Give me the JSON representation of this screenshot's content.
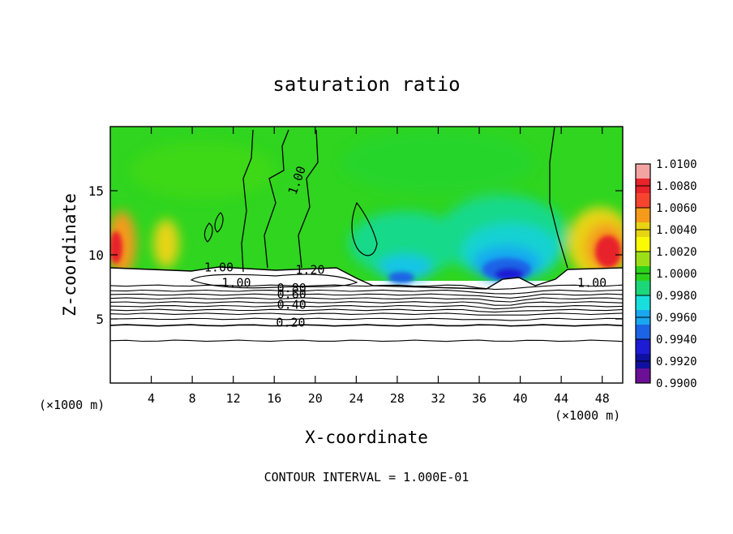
{
  "chart_data": {
    "type": "heatmap",
    "title": "saturation ratio",
    "xlabel": "X-coordinate",
    "ylabel": "Z-coordinate",
    "x_unit_label": "(×1000 m)",
    "footnote": "CONTOUR INTERVAL = 1.000E-01",
    "xlim": [
      0,
      50
    ],
    "ylim": [
      0,
      20
    ],
    "x_ticks": [
      4,
      8,
      12,
      16,
      20,
      24,
      28,
      32,
      36,
      40,
      44,
      48
    ],
    "y_ticks": [
      5,
      10,
      15
    ],
    "grid": false,
    "legend_position": "right",
    "colorbar": {
      "min": 0.99,
      "max": 1.01,
      "tick_labels": [
        "1.0100",
        "1.0080",
        "1.0060",
        "1.0040",
        "1.0020",
        "1.0000",
        "0.9980",
        "0.9960",
        "0.9940",
        "0.9920",
        "0.9900"
      ],
      "colors": [
        "#f4a3a3",
        "#e8232a",
        "#f7442e",
        "#f59a1a",
        "#e7d412",
        "#fafa05",
        "#9ddf17",
        "#2bd21a",
        "#1bd77a",
        "#19dede",
        "#19a8f0",
        "#1c64e6",
        "#1d1bd4",
        "#1010a0",
        "#6a0f96"
      ]
    },
    "contour_labels": [
      {
        "text": "1.00",
        "x": 18.6,
        "y": 15.7,
        "rotate": -70
      },
      {
        "text": "1.00",
        "x": 10.6,
        "y": 8.7
      },
      {
        "text": "1.20",
        "x": 19.5,
        "y": 8.5
      },
      {
        "text": "1.00",
        "x": 12.3,
        "y": 7.5
      },
      {
        "text": "0.80",
        "x": 17.7,
        "y": 7.1
      },
      {
        "text": "0.60",
        "x": 17.7,
        "y": 6.6
      },
      {
        "text": "0.40",
        "x": 17.7,
        "y": 5.8
      },
      {
        "text": "0.20",
        "x": 17.6,
        "y": 4.4
      },
      {
        "text": "1.00",
        "x": 47.0,
        "y": 7.5
      }
    ]
  }
}
